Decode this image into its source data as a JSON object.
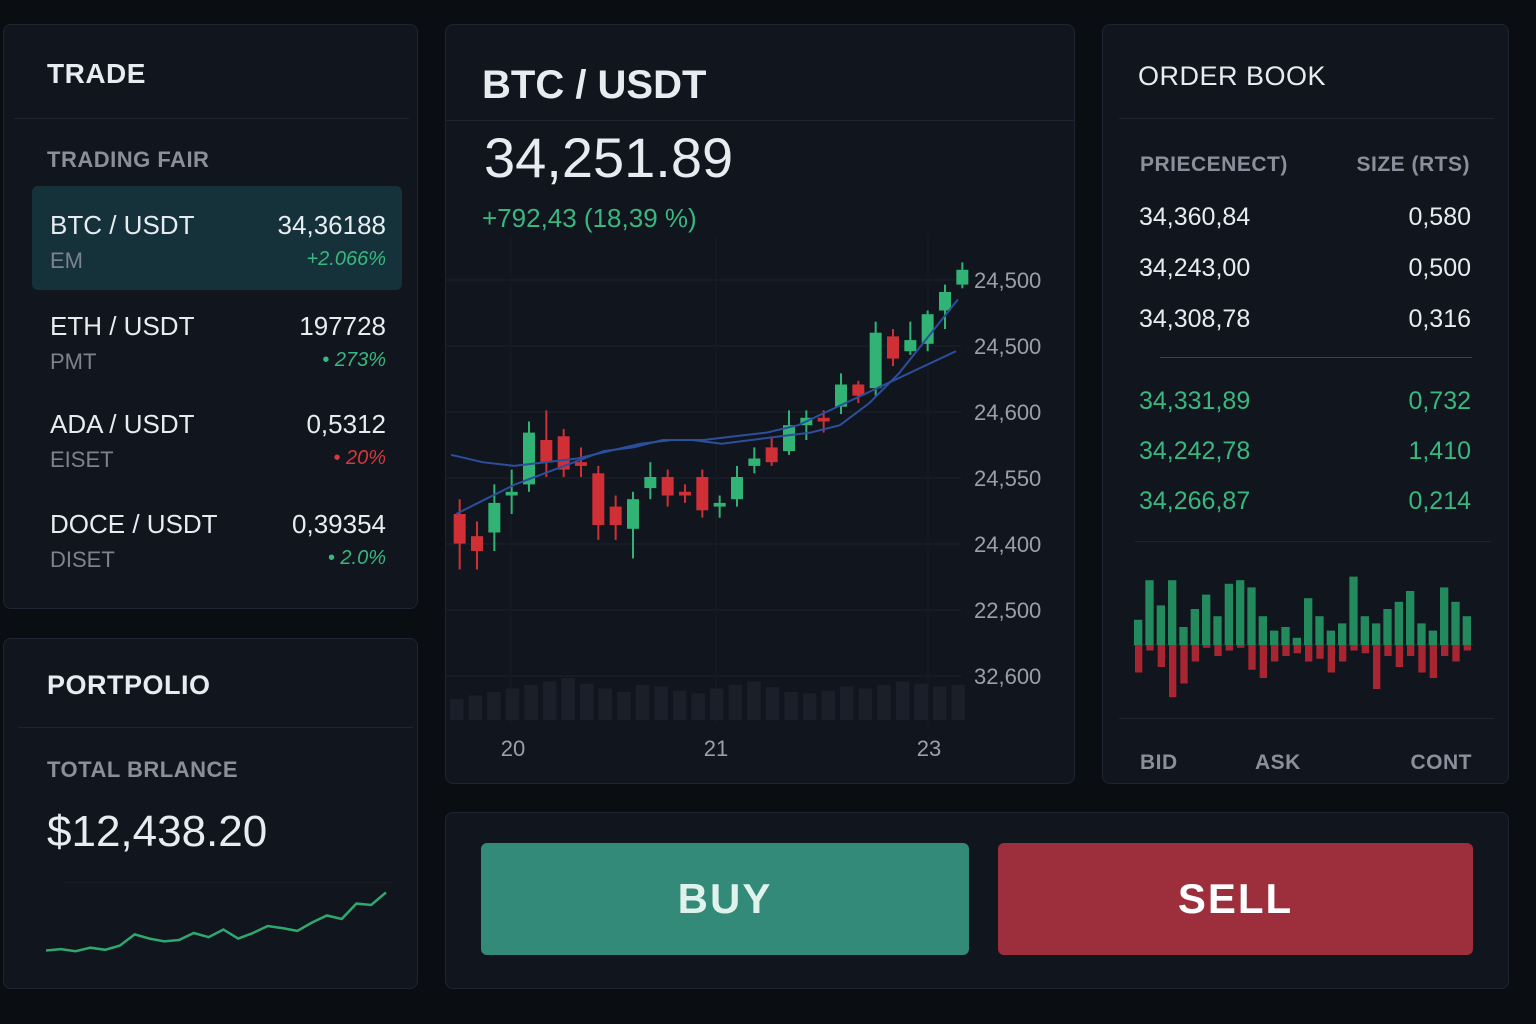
{
  "trade": {
    "title": "TRADE",
    "section_label": "TRADING FAIR",
    "pairs": [
      {
        "name": "BTC / USDT",
        "sub": "EM",
        "price": "34,36188",
        "change": "+2.066%",
        "direction": "up"
      },
      {
        "name": "ETH / USDT",
        "sub": "PMT",
        "price": "197728",
        "change": "• 273%",
        "direction": "up"
      },
      {
        "name": "ADA / USDT",
        "sub": "EISET",
        "price": "0,5312",
        "change": "• 20%",
        "direction": "down"
      },
      {
        "name": "DOCE / USDT",
        "sub": "DISET",
        "price": "0,39354",
        "change": "• 2.0%",
        "direction": "up"
      }
    ]
  },
  "portfolio": {
    "title": "PORTPOLIO",
    "balance_label": "TOTAL BRLANCE",
    "balance_value": "$12,438.20",
    "sparkline": [
      0.05,
      0.07,
      0.04,
      0.09,
      0.06,
      0.12,
      0.28,
      0.22,
      0.18,
      0.2,
      0.3,
      0.24,
      0.35,
      0.22,
      0.3,
      0.4,
      0.37,
      0.33,
      0.45,
      0.55,
      0.5,
      0.72,
      0.7,
      0.88
    ]
  },
  "chart": {
    "pair": "BTC / USDT",
    "price": "34,251.89",
    "change": "+792,43 (18,39 %)",
    "y_labels": [
      "24,500",
      "24,500",
      "24,600",
      "24,550",
      "24,400",
      "22,500",
      "32,600"
    ],
    "x_labels": [
      "20",
      "21",
      "23"
    ],
    "colors": {
      "up": "#30b374",
      "down": "#d12f36",
      "ma": "#2b4f9a"
    }
  },
  "chart_data": {
    "type": "candlestick",
    "candles": [
      {
        "o": 0.3,
        "c": 0.22,
        "h": 0.34,
        "l": 0.15
      },
      {
        "o": 0.24,
        "c": 0.2,
        "h": 0.28,
        "l": 0.15
      },
      {
        "o": 0.25,
        "c": 0.33,
        "h": 0.38,
        "l": 0.2
      },
      {
        "o": 0.35,
        "c": 0.36,
        "h": 0.42,
        "l": 0.3
      },
      {
        "o": 0.38,
        "c": 0.52,
        "h": 0.55,
        "l": 0.36
      },
      {
        "o": 0.5,
        "c": 0.44,
        "h": 0.58,
        "l": 0.4
      },
      {
        "o": 0.51,
        "c": 0.42,
        "h": 0.53,
        "l": 0.4
      },
      {
        "o": 0.44,
        "c": 0.43,
        "h": 0.48,
        "l": 0.4
      },
      {
        "o": 0.41,
        "c": 0.27,
        "h": 0.43,
        "l": 0.23
      },
      {
        "o": 0.32,
        "c": 0.27,
        "h": 0.35,
        "l": 0.23
      },
      {
        "o": 0.26,
        "c": 0.34,
        "h": 0.36,
        "l": 0.18
      },
      {
        "o": 0.37,
        "c": 0.4,
        "h": 0.44,
        "l": 0.34
      },
      {
        "o": 0.4,
        "c": 0.35,
        "h": 0.42,
        "l": 0.32
      },
      {
        "o": 0.36,
        "c": 0.35,
        "h": 0.38,
        "l": 0.33
      },
      {
        "o": 0.4,
        "c": 0.31,
        "h": 0.42,
        "l": 0.29
      },
      {
        "o": 0.32,
        "c": 0.33,
        "h": 0.35,
        "l": 0.29
      },
      {
        "o": 0.34,
        "c": 0.4,
        "h": 0.43,
        "l": 0.32
      },
      {
        "o": 0.43,
        "c": 0.45,
        "h": 0.48,
        "l": 0.41
      },
      {
        "o": 0.48,
        "c": 0.44,
        "h": 0.51,
        "l": 0.43
      },
      {
        "o": 0.47,
        "c": 0.54,
        "h": 0.58,
        "l": 0.46
      },
      {
        "o": 0.54,
        "c": 0.56,
        "h": 0.58,
        "l": 0.5
      },
      {
        "o": 0.56,
        "c": 0.55,
        "h": 0.58,
        "l": 0.52
      },
      {
        "o": 0.59,
        "c": 0.65,
        "h": 0.68,
        "l": 0.57
      },
      {
        "o": 0.65,
        "c": 0.62,
        "h": 0.66,
        "l": 0.6
      },
      {
        "o": 0.64,
        "c": 0.79,
        "h": 0.82,
        "l": 0.62
      },
      {
        "o": 0.78,
        "c": 0.72,
        "h": 0.8,
        "l": 0.7
      },
      {
        "o": 0.74,
        "c": 0.77,
        "h": 0.82,
        "l": 0.73
      },
      {
        "o": 0.76,
        "c": 0.84,
        "h": 0.85,
        "l": 0.74
      },
      {
        "o": 0.85,
        "c": 0.9,
        "h": 0.92,
        "l": 0.8
      },
      {
        "o": 0.92,
        "c": 0.96,
        "h": 0.98,
        "l": 0.91
      }
    ],
    "ma_fast": [
      0.3,
      0.34,
      0.38,
      0.41,
      0.44,
      0.47,
      0.48,
      0.5,
      0.5,
      0.49,
      0.5,
      0.51,
      0.52,
      0.54,
      0.6,
      0.68,
      0.78,
      0.88
    ],
    "ma_slow": [
      0.46,
      0.44,
      0.43,
      0.44,
      0.45,
      0.47,
      0.49,
      0.5,
      0.5,
      0.51,
      0.52,
      0.54,
      0.58,
      0.62,
      0.66,
      0.7,
      0.74
    ],
    "volume": [
      0.3,
      0.35,
      0.4,
      0.45,
      0.5,
      0.55,
      0.6,
      0.52,
      0.45,
      0.4,
      0.5,
      0.48,
      0.42,
      0.38,
      0.45,
      0.5,
      0.55,
      0.47,
      0.4,
      0.38,
      0.42,
      0.48,
      0.45,
      0.5,
      0.55,
      0.52,
      0.48,
      0.5
    ]
  },
  "orderbook": {
    "title": "ORDER BOOK",
    "col_price": "PRIECENECT)",
    "col_size": "SIZE (RTS)",
    "asks": [
      {
        "price": "34,360,84",
        "size": "0,580"
      },
      {
        "price": "34,243,00",
        "size": "0,500"
      },
      {
        "price": "34,308,78",
        "size": "0,316"
      }
    ],
    "bids": [
      {
        "price": "34,331,89",
        "size": "0,732"
      },
      {
        "price": "34,242,78",
        "size": "1,410"
      },
      {
        "price": "34,266,87",
        "size": "0,214"
      }
    ],
    "depth_up": [
      0.35,
      0.9,
      0.55,
      0.9,
      0.25,
      0.5,
      0.7,
      0.4,
      0.85,
      0.9,
      0.8,
      0.4,
      0.2,
      0.25,
      0.1,
      0.65,
      0.4,
      0.2,
      0.3,
      0.95,
      0.4,
      0.3,
      0.5,
      0.6,
      0.75,
      0.3,
      0.2,
      0.8,
      0.6,
      0.4
    ],
    "depth_down": [
      0.5,
      0.1,
      0.4,
      0.95,
      0.7,
      0.3,
      0.05,
      0.2,
      0.1,
      0.05,
      0.45,
      0.6,
      0.3,
      0.2,
      0.15,
      0.3,
      0.25,
      0.5,
      0.3,
      0.1,
      0.15,
      0.8,
      0.2,
      0.4,
      0.2,
      0.5,
      0.6,
      0.2,
      0.3,
      0.1
    ],
    "tabs": [
      "BID",
      "ASK",
      "CONT"
    ]
  },
  "actions": {
    "buy": "BUY",
    "sell": "SELL"
  }
}
